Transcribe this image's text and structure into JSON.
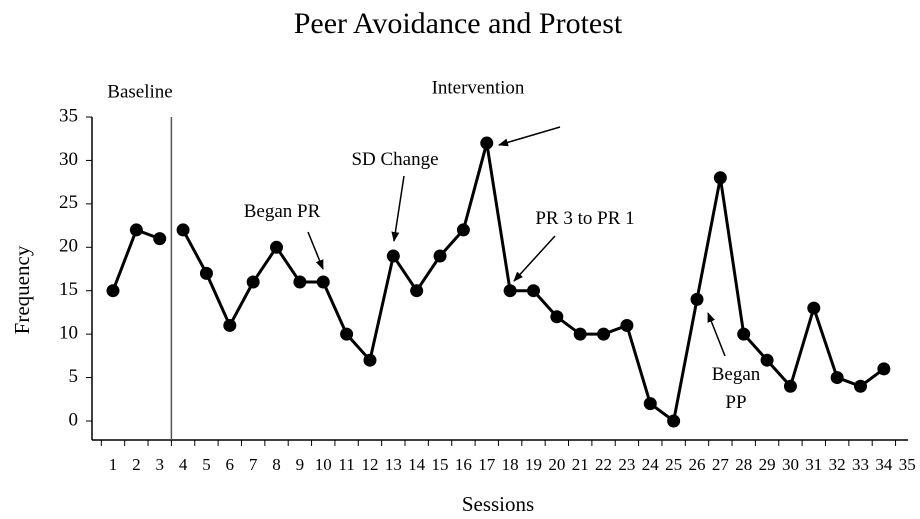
{
  "chart_data": {
    "type": "line",
    "title": "Peer Avoidance and Protest",
    "x_label": "Sessions",
    "y_label": "Frequency",
    "categories": [
      "1",
      "2",
      "3",
      "4",
      "5",
      "6",
      "7",
      "8",
      "9",
      "10",
      "11",
      "12",
      "13",
      "14",
      "15",
      "16",
      "17",
      "18",
      "19",
      "20",
      "21",
      "22",
      "23",
      "24",
      "25",
      "26",
      "27",
      "28",
      "29",
      "30",
      "31",
      "32",
      "33",
      "34",
      "35"
    ],
    "series": [
      {
        "name": "Baseline",
        "color": "#000000",
        "values": [
          15,
          22,
          21,
          null,
          null,
          null,
          null,
          null,
          null,
          null,
          null,
          null,
          null,
          null,
          null,
          null,
          null,
          null,
          null,
          null,
          null,
          null,
          null,
          null,
          null,
          null,
          null,
          null,
          null,
          null,
          null,
          null,
          null,
          null,
          null
        ]
      },
      {
        "name": "Intervention",
        "color": "#000000",
        "values": [
          null,
          null,
          null,
          22,
          17,
          11,
          16,
          20,
          16,
          16,
          10,
          7,
          19,
          15,
          19,
          22,
          32,
          15,
          15,
          12,
          10,
          10,
          11,
          2,
          0,
          14,
          28,
          10,
          7,
          4,
          13,
          5,
          4,
          6,
          null
        ]
      }
    ],
    "ylim": [
      0,
      35
    ],
    "yticks": [
      0,
      5,
      10,
      15,
      20,
      25,
      30,
      35
    ],
    "annotations": [
      {
        "text": "Began PR"
      },
      {
        "text": "SD Change"
      },
      {
        "text": "PR 3 to PR 1"
      },
      {
        "text": "Began\nPP"
      }
    ]
  }
}
